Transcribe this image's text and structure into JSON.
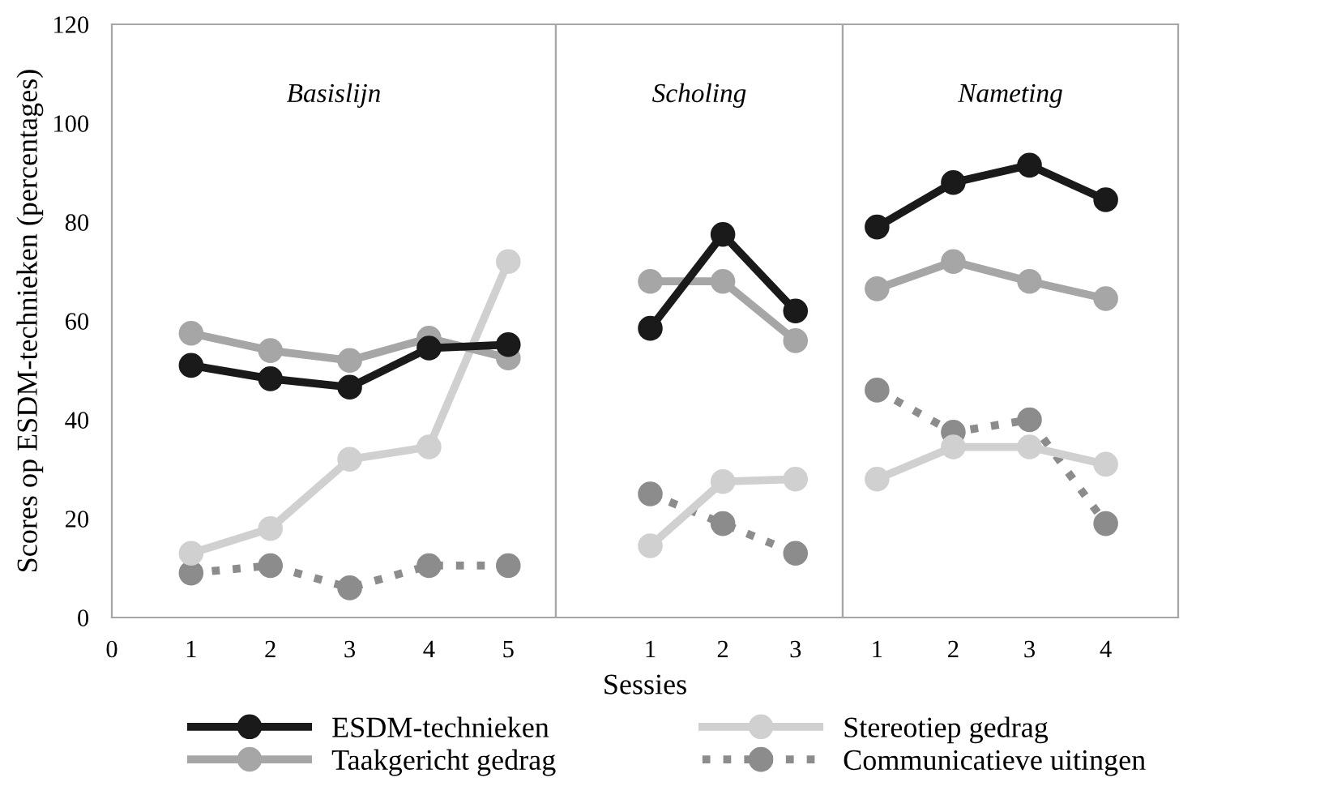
{
  "chart_data": [
    {
      "type": "line",
      "title": "Basislijn",
      "ylabel": "Scores op ESDM-technieken (percentages)",
      "categories": [
        "0",
        "1",
        "2",
        "3",
        "4",
        "5"
      ],
      "ylim": [
        0,
        120
      ],
      "yticks": [
        0,
        20,
        40,
        60,
        80,
        100,
        120
      ],
      "marker": "circle",
      "series": [
        {
          "color": "#1a1a1a",
          "line_style": "solid",
          "values": [
            null,
            51,
            48.3,
            46.6,
            54.5,
            55.2
          ]
        },
        {
          "color": "#a6a6a6",
          "line_style": "solid",
          "values": [
            null,
            57.5,
            54,
            52,
            56.5,
            52.5
          ]
        },
        {
          "color": "#d0d0d0",
          "line_style": "solid",
          "values": [
            null,
            13,
            18,
            32,
            34.5,
            72
          ]
        },
        {
          "color": "#8c8c8c",
          "line_style": "dotted",
          "values": [
            null,
            9,
            10.5,
            6,
            10.5,
            10.5
          ]
        }
      ]
    },
    {
      "type": "line",
      "title": "Scholing",
      "xlabel": "Sessies",
      "categories": [
        "1",
        "2",
        "3"
      ],
      "ylim": [
        0,
        120
      ],
      "yticks": [
        0,
        20,
        40,
        60,
        80,
        100,
        120
      ],
      "tick_labels": "x",
      "marker": "circle",
      "legend": "bottom",
      "series": [
        {
          "name": "ESDM-technieken",
          "color": "#1a1a1a",
          "line_style": "solid",
          "values": [
            58.5,
            77.5,
            62
          ]
        },
        {
          "name": "Taakgericht gedrag",
          "color": "#a6a6a6",
          "line_style": "solid",
          "values": [
            68,
            68,
            56
          ]
        },
        {
          "name": "Stereotiep gedrag",
          "color": "#d0d0d0",
          "line_style": "solid",
          "values": [
            14.5,
            27.5,
            28
          ]
        },
        {
          "name": "Communicatieve uitingen",
          "color": "#8c8c8c",
          "line_style": "dotted",
          "values": [
            25,
            19,
            13
          ]
        }
      ]
    },
    {
      "type": "line",
      "title": "Nameting",
      "categories": [
        "1",
        "2",
        "3",
        "4"
      ],
      "ylim": [
        0,
        120
      ],
      "yticks": [
        0,
        20,
        40,
        60,
        80,
        100,
        120
      ],
      "tick_labels": "x",
      "marker": "circle",
      "series": [
        {
          "color": "#1a1a1a",
          "line_style": "solid",
          "values": [
            79,
            88,
            91.5,
            84.5
          ]
        },
        {
          "color": "#a6a6a6",
          "line_style": "solid",
          "values": [
            66.5,
            72,
            68,
            64.5
          ]
        },
        {
          "color": "#d0d0d0",
          "line_style": "solid",
          "values": [
            28,
            34.5,
            34.5,
            31
          ]
        },
        {
          "color": "#8c8c8c",
          "line_style": "dotted",
          "values": [
            46,
            37.5,
            40,
            19
          ]
        }
      ]
    }
  ]
}
